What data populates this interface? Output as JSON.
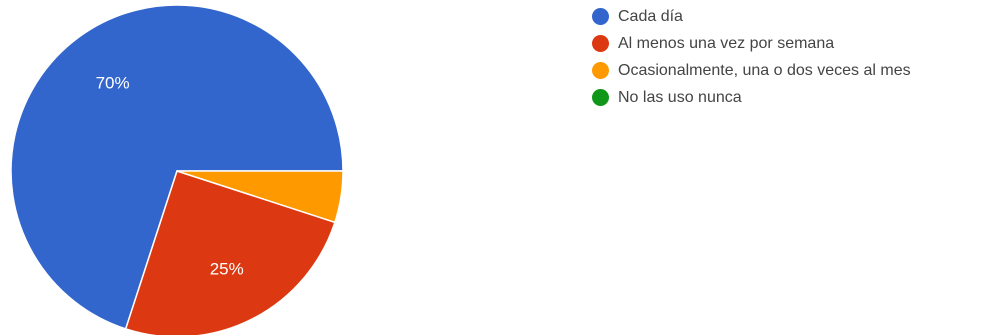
{
  "chart_data": {
    "type": "pie",
    "title": "",
    "slices": [
      {
        "label": "Cada día",
        "value": 70,
        "color": "#3366cc",
        "display": "70%"
      },
      {
        "label": "Al menos una vez por semana",
        "value": 25,
        "color": "#dc3912",
        "display": "25%"
      },
      {
        "label": "Ocasionalmente, una o dos veces al mes",
        "value": 5,
        "color": "#ff9900",
        "display": ""
      },
      {
        "label": "No las uso nunca",
        "value": 0,
        "color": "#109618",
        "display": ""
      }
    ],
    "legend_position": "right"
  }
}
